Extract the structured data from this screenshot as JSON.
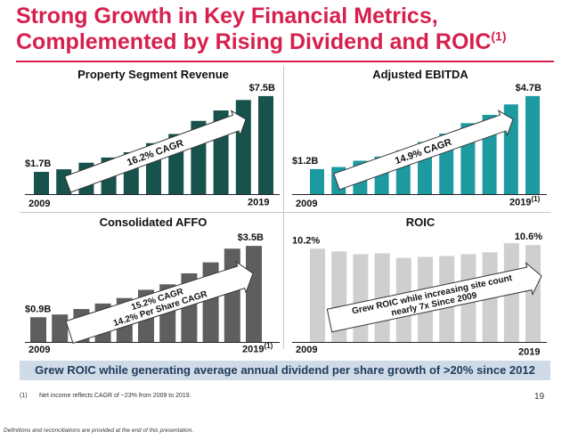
{
  "slide": {
    "title_main": "Strong Growth in Key Financial Metrics, Complemented by Rising Dividend and ROIC",
    "title_sup": "(1)",
    "banner": "Grew ROIC while generating average annual dividend per share growth of >20% since 2012",
    "footnote_num": "(1)",
    "footnote_text": "Net income reflects CAGR of ~23% from 2009 to 2019.",
    "page_number": "19",
    "disclaimer": "Definitions and reconciliations are provided at the end of this presentation.",
    "colors": {
      "title": "#d6204e",
      "banner_bg": "#cfdce8",
      "banner_text": "#1f3a5a"
    }
  },
  "chart_data": [
    {
      "type": "bar",
      "title": "Property Segment Revenue",
      "categories": [
        "2009",
        "2010",
        "2011",
        "2012",
        "2013",
        "2014",
        "2015",
        "2016",
        "2017",
        "2018",
        "2019"
      ],
      "values": [
        1.7,
        1.9,
        2.4,
        2.8,
        3.2,
        3.9,
        4.6,
        5.6,
        6.4,
        7.2,
        7.5
      ],
      "ylim": [
        0,
        7.9
      ],
      "start_label": "$1.7B",
      "end_label": "$7.5B",
      "x_start_label": "2009",
      "x_end_label": "2019",
      "x_end_sup": "",
      "arrow_text": [
        "16.2% CAGR"
      ],
      "color": "#17524d"
    },
    {
      "type": "bar",
      "title": "Adjusted EBITDA",
      "categories": [
        "2009",
        "2010",
        "2011",
        "2012",
        "2013",
        "2014",
        "2015",
        "2016",
        "2017",
        "2018",
        "2019"
      ],
      "values": [
        1.2,
        1.3,
        1.6,
        1.8,
        2.1,
        2.5,
        2.9,
        3.4,
        3.8,
        4.3,
        4.7
      ],
      "ylim": [
        0,
        4.95
      ],
      "start_label": "$1.2B",
      "end_label": "$4.7B",
      "x_start_label": "2009",
      "x_end_label": "2019",
      "x_end_sup": "(1)",
      "arrow_text": [
        "14.9% CAGR"
      ],
      "color": "#1d9aa0"
    },
    {
      "type": "bar",
      "title": "Consolidated AFFO",
      "categories": [
        "2009",
        "2010",
        "2011",
        "2012",
        "2013",
        "2014",
        "2015",
        "2016",
        "2017",
        "2018",
        "2019"
      ],
      "values": [
        0.9,
        1.0,
        1.2,
        1.4,
        1.6,
        1.9,
        2.1,
        2.5,
        2.9,
        3.4,
        3.5
      ],
      "ylim": [
        0,
        3.7
      ],
      "start_label": "$0.9B",
      "end_label": "$3.5B",
      "x_start_label": "2009",
      "x_end_label": "2019",
      "x_end_sup": "(1)",
      "arrow_text": [
        "15.2% CAGR",
        "14.2% Per Share CAGR"
      ],
      "color": "#5e5e5e"
    },
    {
      "type": "bar",
      "title": "ROIC",
      "categories": [
        "2009",
        "2010",
        "2011",
        "2012",
        "2013",
        "2014",
        "2015",
        "2016",
        "2017",
        "2018",
        "2019"
      ],
      "values": [
        10.2,
        9.9,
        9.6,
        9.7,
        9.2,
        9.3,
        9.4,
        9.6,
        9.8,
        10.8,
        10.6
      ],
      "ylim": [
        0,
        11.3
      ],
      "start_label": "10.2%",
      "end_label": "10.6%",
      "x_start_label": "2009",
      "x_end_label": "2019",
      "x_end_sup": "",
      "arrow_text": [
        "Grew ROIC while increasing site count",
        "nearly 7x Since 2009"
      ],
      "color": "#cfcfcf"
    }
  ]
}
